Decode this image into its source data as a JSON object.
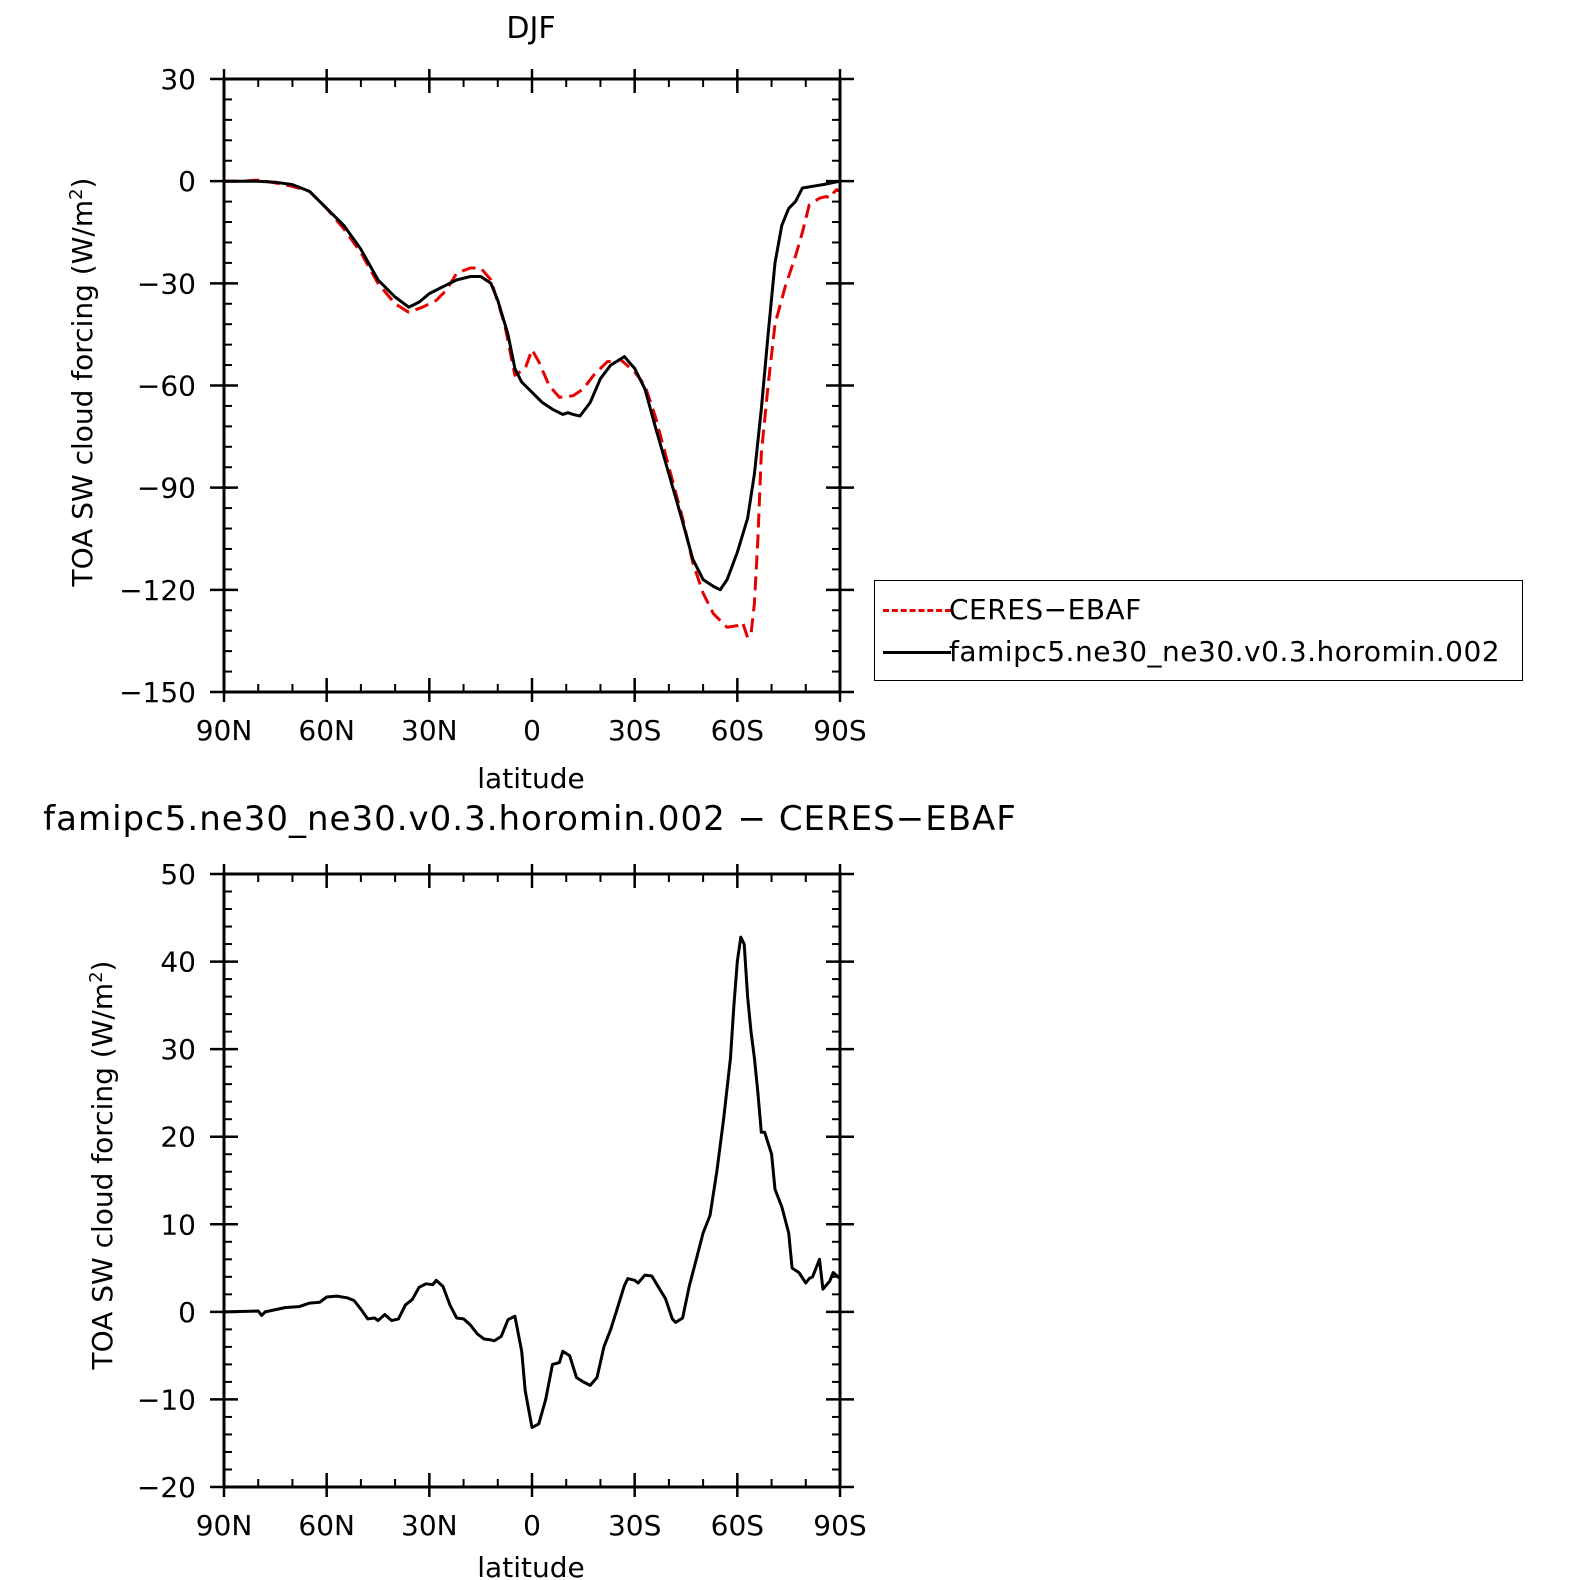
{
  "chart_data": [
    {
      "type": "line",
      "title": "DJF",
      "xlabel": "latitude",
      "ylabel": "TOA SW cloud forcing (W/m²)",
      "ylabel_main": "TOA SW cloud forcing (W/m",
      "ylabel_sup": "2",
      "ylabel_end": ")",
      "xlim": [
        90,
        -90
      ],
      "ylim": [
        -150,
        30
      ],
      "xticks": [
        90,
        60,
        30,
        0,
        -30,
        -60,
        -90
      ],
      "xtick_labels": [
        "90N",
        "60N",
        "30N",
        "0",
        "30S",
        "60S",
        "90S"
      ],
      "yticks": [
        -150,
        -120,
        -90,
        -60,
        -30,
        0,
        30
      ],
      "ytick_labels": [
        "−150",
        "−120",
        "−90",
        "−60",
        "−30",
        "0",
        "30"
      ],
      "legend": "right",
      "series": [
        {
          "name": "CERES−EBAF",
          "color": "#e60000",
          "dash": "dashed",
          "points": [
            [
              90,
              0
            ],
            [
              85,
              0
            ],
            [
              80,
              0.3
            ],
            [
              75,
              -0.5
            ],
            [
              70,
              -1.5
            ],
            [
              65,
              -3
            ],
            [
              60,
              -8
            ],
            [
              55,
              -14
            ],
            [
              50,
              -21
            ],
            [
              45,
              -30
            ],
            [
              40,
              -36
            ],
            [
              36,
              -38.5
            ],
            [
              32,
              -37
            ],
            [
              28,
              -35
            ],
            [
              25,
              -32
            ],
            [
              22,
              -27
            ],
            [
              18,
              -25.5
            ],
            [
              15,
              -25.5
            ],
            [
              12,
              -29
            ],
            [
              8,
              -42
            ],
            [
              5,
              -57
            ],
            [
              2,
              -55
            ],
            [
              0,
              -49.5
            ],
            [
              -2,
              -53
            ],
            [
              -5,
              -60
            ],
            [
              -8,
              -63.5
            ],
            [
              -12,
              -63
            ],
            [
              -15,
              -61
            ],
            [
              -18,
              -57
            ],
            [
              -22,
              -53
            ],
            [
              -26,
              -52.5
            ],
            [
              -30,
              -56
            ],
            [
              -33,
              -60
            ],
            [
              -36,
              -69
            ],
            [
              -40,
              -84
            ],
            [
              -44,
              -99
            ],
            [
              -47,
              -112
            ],
            [
              -50,
              -121
            ],
            [
              -53,
              -127
            ],
            [
              -57,
              -131
            ],
            [
              -60,
              -130.5
            ],
            [
              -61.5,
              -129.5
            ],
            [
              -63,
              -134
            ],
            [
              -64,
              -133
            ],
            [
              -65,
              -124
            ],
            [
              -66,
              -105
            ],
            [
              -67,
              -80
            ],
            [
              -69,
              -60
            ],
            [
              -71,
              -42
            ],
            [
              -74,
              -31
            ],
            [
              -77,
              -22
            ],
            [
              -79,
              -15
            ],
            [
              -81,
              -7
            ],
            [
              -84,
              -5
            ],
            [
              -86,
              -4.5
            ],
            [
              -87,
              -5
            ],
            [
              -88,
              -3.5
            ],
            [
              -89,
              -2.5
            ],
            [
              -90,
              -3
            ]
          ]
        },
        {
          "name": "famipc5.ne30_ne30.v0.3.horomin.002",
          "color": "#000000",
          "dash": "solid",
          "points": [
            [
              90,
              0
            ],
            [
              80,
              0
            ],
            [
              75,
              -0.3
            ],
            [
              70,
              -1
            ],
            [
              65,
              -3
            ],
            [
              60,
              -8
            ],
            [
              55,
              -13
            ],
            [
              50,
              -20
            ],
            [
              45,
              -29
            ],
            [
              40,
              -34
            ],
            [
              36,
              -37
            ],
            [
              33,
              -35.5
            ],
            [
              30,
              -33
            ],
            [
              26,
              -31
            ],
            [
              22,
              -29
            ],
            [
              18,
              -28
            ],
            [
              15,
              -28
            ],
            [
              12,
              -30
            ],
            [
              10,
              -35
            ],
            [
              7,
              -45
            ],
            [
              5,
              -55
            ],
            [
              3,
              -59
            ],
            [
              0,
              -62
            ],
            [
              -3,
              -65
            ],
            [
              -6,
              -67
            ],
            [
              -9,
              -68.5
            ],
            [
              -10.5,
              -68
            ],
            [
              -12,
              -68.5
            ],
            [
              -14,
              -69
            ],
            [
              -17,
              -65
            ],
            [
              -20,
              -58
            ],
            [
              -23,
              -54
            ],
            [
              -27,
              -51.5
            ],
            [
              -30,
              -55
            ],
            [
              -33,
              -61
            ],
            [
              -36,
              -72
            ],
            [
              -40,
              -86
            ],
            [
              -44,
              -100
            ],
            [
              -47,
              -111
            ],
            [
              -50,
              -117
            ],
            [
              -53,
              -119
            ],
            [
              -55,
              -120
            ],
            [
              -57,
              -117
            ],
            [
              -60,
              -109
            ],
            [
              -63,
              -99
            ],
            [
              -65,
              -86
            ],
            [
              -67,
              -67
            ],
            [
              -69,
              -45
            ],
            [
              -71,
              -24
            ],
            [
              -73,
              -13
            ],
            [
              -75,
              -8
            ],
            [
              -77,
              -6
            ],
            [
              -79,
              -2
            ],
            [
              -82,
              -1.5
            ],
            [
              -85,
              -1
            ],
            [
              -90,
              0
            ]
          ]
        }
      ]
    },
    {
      "type": "line",
      "title": "famipc5.ne30_ne30.v0.3.horomin.002 − CERES−EBAF",
      "xlabel": "latitude",
      "ylabel": "TOA SW cloud forcing (W/m²)",
      "ylabel_main": "TOA SW cloud forcing (W/m",
      "ylabel_sup": "2",
      "ylabel_end": ")",
      "xlim": [
        90,
        -90
      ],
      "ylim": [
        -20,
        50
      ],
      "xticks": [
        90,
        60,
        30,
        0,
        -30,
        -60,
        -90
      ],
      "xtick_labels": [
        "90N",
        "60N",
        "30N",
        "0",
        "30S",
        "60S",
        "90S"
      ],
      "yticks": [
        -20,
        -10,
        0,
        10,
        20,
        30,
        40,
        50
      ],
      "ytick_labels": [
        "−20",
        "−10",
        "0",
        "10",
        "20",
        "30",
        "40",
        "50"
      ],
      "series": [
        {
          "color": "#000000",
          "dash": "solid",
          "points": [
            [
              90,
              0
            ],
            [
              80,
              0.1
            ],
            [
              79,
              -0.4
            ],
            [
              78,
              0
            ],
            [
              72,
              0.5
            ],
            [
              68,
              0.6
            ],
            [
              65,
              1
            ],
            [
              62,
              1.1
            ],
            [
              60,
              1.7
            ],
            [
              57,
              1.8
            ],
            [
              54,
              1.6
            ],
            [
              52,
              1.3
            ],
            [
              50,
              0.3
            ],
            [
              48,
              -0.8
            ],
            [
              46,
              -0.7
            ],
            [
              45,
              -1
            ],
            [
              43,
              -0.3
            ],
            [
              41,
              -1
            ],
            [
              39,
              -0.8
            ],
            [
              37,
              0.8
            ],
            [
              35,
              1.4
            ],
            [
              33,
              2.8
            ],
            [
              31,
              3.2
            ],
            [
              29,
              3.1
            ],
            [
              28,
              3.6
            ],
            [
              26,
              2.9
            ],
            [
              24,
              0.8
            ],
            [
              22,
              -0.7
            ],
            [
              20,
              -0.8
            ],
            [
              18,
              -1.5
            ],
            [
              16,
              -2.5
            ],
            [
              14,
              -3.1
            ],
            [
              12,
              -3.2
            ],
            [
              11,
              -3.3
            ],
            [
              9,
              -2.8
            ],
            [
              7,
              -0.9
            ],
            [
              5,
              -0.5
            ],
            [
              3,
              -4.5
            ],
            [
              2,
              -9
            ],
            [
              0,
              -13.2
            ],
            [
              -2,
              -12.8
            ],
            [
              -4,
              -10
            ],
            [
              -6,
              -6
            ],
            [
              -8,
              -5.8
            ],
            [
              -9,
              -4.5
            ],
            [
              -11,
              -5
            ],
            [
              -13,
              -7.5
            ],
            [
              -15,
              -8
            ],
            [
              -17,
              -8.4
            ],
            [
              -19,
              -7.5
            ],
            [
              -21,
              -4
            ],
            [
              -23,
              -2
            ],
            [
              -25,
              0.5
            ],
            [
              -27,
              3
            ],
            [
              -28,
              3.8
            ],
            [
              -30,
              3.6
            ],
            [
              -31,
              3.3
            ],
            [
              -33,
              4.2
            ],
            [
              -35,
              4.1
            ],
            [
              -37,
              2.8
            ],
            [
              -39,
              1.5
            ],
            [
              -41,
              -0.8
            ],
            [
              -42,
              -1.2
            ],
            [
              -44,
              -0.7
            ],
            [
              -46,
              3
            ],
            [
              -48,
              6
            ],
            [
              -50,
              9
            ],
            [
              -52,
              11
            ],
            [
              -54,
              16
            ],
            [
              -56,
              22
            ],
            [
              -58,
              29
            ],
            [
              -59,
              35
            ],
            [
              -60,
              40
            ],
            [
              -61,
              42.8
            ],
            [
              -62,
              42
            ],
            [
              -63,
              36
            ],
            [
              -64,
              32
            ],
            [
              -65,
              29
            ],
            [
              -66,
              25
            ],
            [
              -67,
              20.5
            ],
            [
              -68,
              20.5
            ],
            [
              -70,
              18
            ],
            [
              -71,
              14
            ],
            [
              -73,
              12
            ],
            [
              -75,
              9
            ],
            [
              -76,
              5
            ],
            [
              -78,
              4.5
            ],
            [
              -80,
              3.3
            ],
            [
              -81,
              3.8
            ],
            [
              -82,
              4
            ],
            [
              -84,
              6
            ],
            [
              -85,
              2.6
            ],
            [
              -87,
              3.5
            ],
            [
              -88,
              4.5
            ],
            [
              -90,
              3.8
            ]
          ]
        }
      ]
    }
  ]
}
